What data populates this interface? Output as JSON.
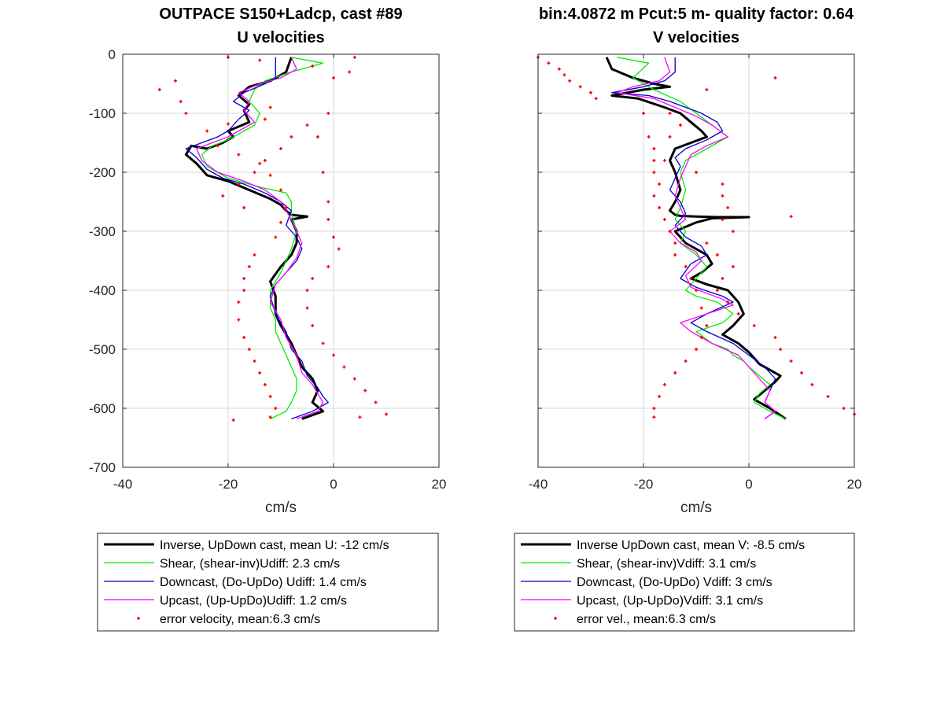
{
  "chart_data": [
    {
      "type": "line",
      "title": "OUTPACE S150+Ladcp, cast #89",
      "subtitle": "U velocities",
      "xlabel": "cm/s",
      "ylabel": "",
      "xlim": [
        -40,
        20
      ],
      "ylim": [
        -700,
        0
      ],
      "xticks": [
        "-40",
        "-20",
        "0",
        "20"
      ],
      "yticks": [
        "0",
        "-100",
        "-200",
        "-300",
        "-400",
        "-500",
        "-600",
        "-700"
      ],
      "grid": true,
      "legend": [
        "Inverse, UpDown cast, mean U:  -12 cm/s",
        "Shear, (shear-inv)Udiff:  2.3 cm/s",
        "Downcast, (Do-UpDo) Udiff:  1.4 cm/s",
        "Upcast, (Up-UpDo)Udiff:  1.2 cm/s",
        "error velocity, mean:6.3 cm/s"
      ],
      "series": [
        {
          "name": "Inverse, UpDown cast, mean U:  -12 cm/s",
          "color": "#000000",
          "x": [
            -8,
            -9,
            -12,
            -16,
            -18,
            -16,
            -17,
            -16,
            -20,
            -19,
            -21,
            -24,
            -27,
            -28,
            -26,
            -25,
            -24,
            -20,
            -16,
            -12,
            -10,
            -9,
            -8,
            -5,
            -8,
            -7,
            -7,
            -8,
            -10,
            -12,
            -11,
            -11,
            -10,
            -8,
            -7,
            -6,
            -4,
            -3,
            -4,
            -2,
            -6
          ],
          "y": [
            -5,
            -30,
            -45,
            -55,
            -70,
            -85,
            -95,
            -115,
            -130,
            -140,
            -150,
            -160,
            -155,
            -170,
            -185,
            -195,
            -205,
            -215,
            -230,
            -245,
            -255,
            -265,
            -272,
            -275,
            -280,
            -300,
            -320,
            -340,
            -360,
            -385,
            -410,
            -440,
            -460,
            -490,
            -510,
            -530,
            -550,
            -570,
            -590,
            -605,
            -618
          ]
        },
        {
          "name": "Shear, (shear-inv)Udiff:  2.3 cm/s",
          "color": "#00ee00",
          "x": [
            -8,
            -2,
            -8,
            -13,
            -15,
            -16,
            -14,
            -15,
            -18,
            -20,
            -23,
            -25,
            -24,
            -20,
            -14,
            -9,
            -8,
            -8,
            -7,
            -8,
            -10,
            -12,
            -12,
            -11,
            -11,
            -10,
            -9,
            -8,
            -7,
            -7,
            -8,
            -9,
            -12
          ],
          "y": [
            -5,
            -15,
            -30,
            -45,
            -60,
            -80,
            -100,
            -120,
            -135,
            -145,
            -155,
            -170,
            -190,
            -210,
            -225,
            -235,
            -250,
            -270,
            -300,
            -330,
            -370,
            -400,
            -430,
            -450,
            -470,
            -490,
            -510,
            -530,
            -550,
            -570,
            -590,
            -605,
            -618
          ]
        },
        {
          "name": "Downcast, (Do-UpDo) Udiff:  1.4 cm/s",
          "color": "#0000cc",
          "x": [
            -11,
            -11,
            -11,
            -13,
            -17,
            -19,
            -16,
            -18,
            -20,
            -22,
            -25,
            -28,
            -26,
            -24,
            -21,
            -17,
            -13,
            -10,
            -8,
            -9,
            -7,
            -6,
            -7,
            -9,
            -11,
            -12,
            -11,
            -9,
            -8,
            -6,
            -5,
            -3,
            -2,
            -1,
            -4,
            -8
          ],
          "y": [
            -5,
            -25,
            -40,
            -50,
            -65,
            -80,
            -95,
            -110,
            -130,
            -140,
            -150,
            -160,
            -175,
            -195,
            -210,
            -220,
            -235,
            -250,
            -265,
            -290,
            -310,
            -330,
            -350,
            -370,
            -390,
            -410,
            -440,
            -470,
            -500,
            -520,
            -545,
            -565,
            -580,
            -590,
            -605,
            -618
          ]
        },
        {
          "name": "Upcast, (Up-UpDo)Udiff:  1.2 cm/s",
          "color": "#ff00ff",
          "x": [
            -8,
            -7,
            -10,
            -14,
            -18,
            -16,
            -17,
            -15,
            -18,
            -20,
            -23,
            -26,
            -25,
            -22,
            -17,
            -13,
            -10,
            -8,
            -7,
            -6,
            -7,
            -9,
            -11,
            -12,
            -10,
            -9,
            -7,
            -6,
            -4,
            -3,
            -2,
            -3,
            -7
          ],
          "y": [
            -5,
            -25,
            -40,
            -50,
            -65,
            -80,
            -95,
            -115,
            -130,
            -140,
            -150,
            -160,
            -180,
            -200,
            -215,
            -230,
            -250,
            -280,
            -300,
            -320,
            -345,
            -370,
            -390,
            -420,
            -450,
            -480,
            -510,
            -540,
            -560,
            -575,
            -590,
            -605,
            -618
          ]
        },
        {
          "name": "error velocity, mean:6.3 cm/s",
          "color": "#ff0000",
          "x": [
            -20,
            -14,
            -30,
            -33,
            -29,
            -28,
            -24,
            -22,
            -18,
            -14,
            -12,
            -10,
            -9,
            -10,
            -11,
            -15,
            -16,
            -17,
            -17,
            -18,
            -18,
            -17,
            -16,
            -15,
            -14,
            -13,
            -12,
            -11,
            -12,
            -12,
            -13,
            -20,
            -19,
            -4,
            0,
            3,
            4,
            -3,
            -2,
            -1,
            -1,
            0,
            1,
            -1,
            -4,
            -5,
            -5,
            -4,
            -2,
            0,
            2,
            4,
            6,
            8,
            10,
            -1,
            -5,
            -8,
            -10,
            -13,
            -15,
            -18,
            -21,
            -17,
            5
          ],
          "y": [
            -5,
            -10,
            -45,
            -60,
            -80,
            -100,
            -130,
            -155,
            -170,
            -185,
            -205,
            -230,
            -260,
            -285,
            -310,
            -340,
            -360,
            -380,
            -400,
            -420,
            -450,
            -480,
            -500,
            -520,
            -540,
            -560,
            -580,
            -600,
            -615,
            -90,
            -110,
            -118,
            -620,
            -20,
            -40,
            -30,
            -5,
            -140,
            -200,
            -250,
            -280,
            -310,
            -330,
            -360,
            -380,
            -400,
            -430,
            -460,
            -490,
            -510,
            -530,
            -550,
            -570,
            -590,
            -610,
            -100,
            -120,
            -140,
            -160,
            -180,
            -200,
            -220,
            -240,
            -260,
            -615
          ]
        }
      ]
    },
    {
      "type": "line",
      "title": "bin:4.0872 m  Pcut:5 m- quality factor:  0.64",
      "subtitle": "V velocities",
      "xlabel": "cm/s",
      "ylabel": "",
      "xlim": [
        -40,
        20
      ],
      "ylim": [
        -700,
        0
      ],
      "xticks": [
        "-40",
        "-20",
        "0",
        "20"
      ],
      "yticks": [],
      "grid": true,
      "legend": [
        "Inverse UpDown cast, mean V:  -8.5 cm/s",
        "Shear, (shear-inv)Vdiff:  3.1 cm/s",
        "Downcast, (Do-UpDo) Vdiff:  3 cm/s",
        "Upcast, (Up-UpDo)Vdiff:  3.1 cm/s",
        "error vel., mean:6.3 cm/s"
      ],
      "series": [
        {
          "name": "Inverse UpDown cast, mean V:  -8.5 cm/s",
          "color": "#000000",
          "x": [
            -27,
            -26,
            -22,
            -18,
            -15,
            -20,
            -26,
            -21,
            -16,
            -13,
            -11,
            -9,
            -8,
            -11,
            -14,
            -15,
            -14,
            -13,
            -14,
            -15,
            -14,
            -13,
            -10,
            -6,
            0,
            -7,
            -10,
            -14,
            -12,
            -8,
            -7,
            -9,
            -11,
            -8,
            -4,
            -2,
            -1,
            -3,
            -5,
            -2,
            0,
            1,
            2,
            4,
            6,
            5,
            3,
            1,
            4,
            7
          ],
          "y": [
            -5,
            -25,
            -40,
            -50,
            -55,
            -60,
            -70,
            -75,
            -90,
            -100,
            -115,
            -130,
            -140,
            -150,
            -160,
            -180,
            -200,
            -230,
            -250,
            -265,
            -272,
            -274,
            -275,
            -276,
            -276,
            -278,
            -285,
            -300,
            -320,
            -340,
            -355,
            -370,
            -380,
            -390,
            -400,
            -420,
            -440,
            -460,
            -475,
            -490,
            -505,
            -515,
            -525,
            -535,
            -545,
            -555,
            -570,
            -585,
            -600,
            -618
          ]
        },
        {
          "name": "Shear, (shear-inv)Vdiff:  3.1 cm/s",
          "color": "#00ee00",
          "x": [
            -25,
            -19,
            -22,
            -18,
            -13,
            -10,
            -7,
            -4,
            -8,
            -12,
            -13,
            -12,
            -13,
            -14,
            -12,
            -13,
            -10,
            -8,
            -10,
            -12,
            -10,
            -6,
            -3,
            -5,
            -10,
            -7,
            -4,
            -3,
            -1,
            0,
            2,
            4,
            2,
            1,
            4,
            7
          ],
          "y": [
            -5,
            -15,
            -40,
            -60,
            -80,
            -100,
            -120,
            -140,
            -160,
            -180,
            -200,
            -230,
            -260,
            -280,
            -300,
            -320,
            -340,
            -360,
            -380,
            -400,
            -410,
            -420,
            -440,
            -455,
            -470,
            -490,
            -500,
            -510,
            -520,
            -530,
            -545,
            -560,
            -575,
            -590,
            -605,
            -618
          ]
        },
        {
          "name": "Downcast, (Do-UpDo) Vdiff:  3 cm/s",
          "color": "#0000cc",
          "x": [
            -14,
            -14,
            -16,
            -20,
            -26,
            -19,
            -15,
            -9,
            -6,
            -5,
            -8,
            -12,
            -14,
            -13,
            -14,
            -15,
            -13,
            -12,
            -14,
            -12,
            -9,
            -8,
            -11,
            -13,
            -10,
            -5,
            -3,
            -8,
            -11,
            -8,
            -3,
            0,
            3,
            5,
            4,
            3,
            5,
            3
          ],
          "y": [
            -5,
            -30,
            -45,
            -55,
            -65,
            -70,
            -80,
            -100,
            -115,
            -130,
            -145,
            -160,
            -175,
            -190,
            -210,
            -230,
            -250,
            -270,
            -290,
            -310,
            -325,
            -340,
            -355,
            -380,
            -395,
            -410,
            -420,
            -440,
            -455,
            -470,
            -490,
            -510,
            -530,
            -550,
            -570,
            -590,
            -605,
            -618
          ]
        },
        {
          "name": "Upcast, (Up-UpDo)Vdiff:  3.1 cm/s",
          "color": "#ff00ff",
          "x": [
            -16,
            -15,
            -17,
            -22,
            -25,
            -18,
            -14,
            -10,
            -7,
            -4,
            -8,
            -11,
            -12,
            -13,
            -14,
            -13,
            -12,
            -15,
            -13,
            -10,
            -9,
            -12,
            -11,
            -8,
            -5,
            -3,
            -8,
            -13,
            -11,
            -7,
            -2,
            0,
            2,
            4,
            3,
            5,
            3
          ],
          "y": [
            -5,
            -30,
            -45,
            -55,
            -65,
            -75,
            -90,
            -105,
            -120,
            -140,
            -155,
            -170,
            -190,
            -210,
            -240,
            -260,
            -280,
            -300,
            -320,
            -335,
            -350,
            -375,
            -395,
            -405,
            -415,
            -425,
            -440,
            -455,
            -470,
            -490,
            -510,
            -530,
            -550,
            -570,
            -590,
            -605,
            -618
          ]
        },
        {
          "name": "error vel., mean:6.3 cm/s",
          "color": "#ff0000",
          "x": [
            -40,
            -38,
            -36,
            -35,
            -34,
            -32,
            -30,
            -29,
            -20,
            -19,
            -18,
            -18,
            -17,
            -18,
            -17,
            -16,
            -15,
            -14,
            -14,
            -12,
            -11,
            -10,
            -9,
            -8,
            -9,
            -10,
            -12,
            -14,
            -16,
            -17,
            -18,
            -18,
            -15,
            -13,
            -15,
            -18,
            -16,
            -10,
            -5,
            -5,
            -4,
            -5,
            -3,
            -8,
            -6,
            -3,
            -5,
            -6,
            -4,
            -2,
            1,
            5,
            6,
            8,
            10,
            12,
            15,
            18,
            20,
            8,
            5,
            -8
          ],
          "y": [
            -5,
            -15,
            -25,
            -35,
            -45,
            -55,
            -65,
            -75,
            -100,
            -140,
            -180,
            -200,
            -220,
            -240,
            -260,
            -280,
            -300,
            -320,
            -340,
            -360,
            -380,
            -400,
            -430,
            -460,
            -480,
            -500,
            -520,
            -540,
            -560,
            -580,
            -600,
            -615,
            -100,
            -120,
            -140,
            -160,
            -180,
            -200,
            -220,
            -240,
            -260,
            -280,
            -300,
            -320,
            -340,
            -360,
            -380,
            -400,
            -420,
            -440,
            -460,
            -480,
            -500,
            -520,
            -540,
            -560,
            -580,
            -600,
            -610,
            -275,
            -40,
            -60
          ]
        }
      ]
    }
  ]
}
